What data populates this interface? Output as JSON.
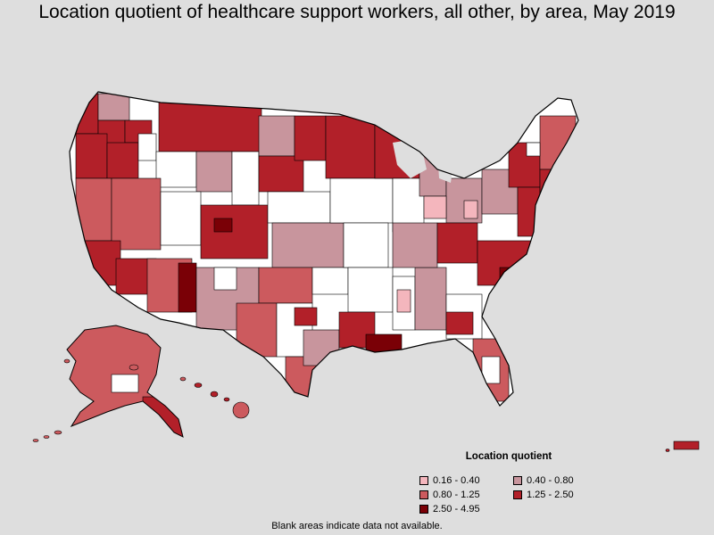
{
  "title": "Location quotient of healthcare support workers, all other, by area, May 2019",
  "legend": {
    "title": "Location quotient",
    "items": [
      {
        "label": "0.16 - 0.40",
        "color": "#f4b6bd"
      },
      {
        "label": "0.40 - 0.80",
        "color": "#c8959d"
      },
      {
        "label": "0.80 - 1.25",
        "color": "#cc5a5e"
      },
      {
        "label": "1.25 - 2.50",
        "color": "#b22029"
      },
      {
        "label": "2.50 - 4.95",
        "color": "#7a0006"
      }
    ]
  },
  "footnote": "Blank areas indicate data not available.",
  "colors": {
    "background": "#dedede",
    "no_data": "#ffffff",
    "border": "#000000"
  }
}
